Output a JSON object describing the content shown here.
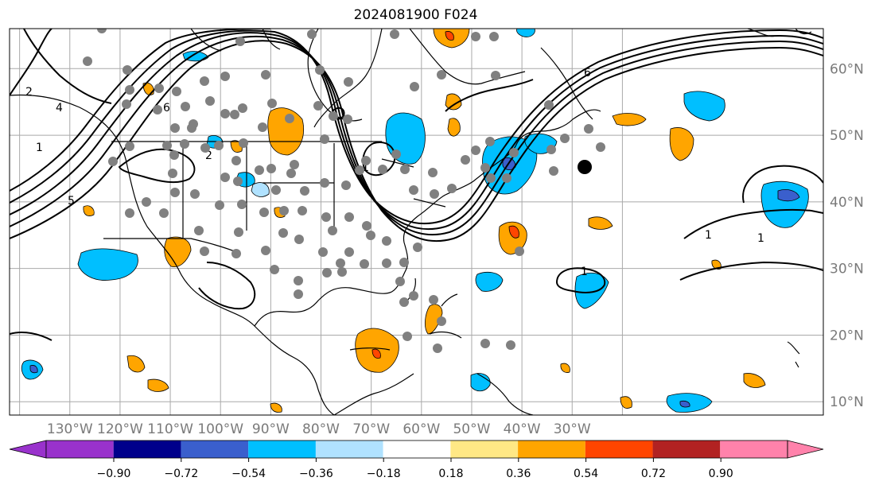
{
  "title": "2024081900 F024",
  "map": {
    "projection": "PlateCarree",
    "lon_range": [
      -142,
      20
    ],
    "lat_range": [
      8,
      66
    ],
    "grid": true,
    "longitude_labels": [
      "130°W",
      "120°W",
      "110°W",
      "100°W",
      "90°W",
      "80°W",
      "70°W",
      "60°W",
      "50°W",
      "40°W",
      "30°W"
    ],
    "latitude_labels": [
      "60°N",
      "50°N",
      "40°N",
      "30°N",
      "20°N",
      "10°N"
    ],
    "highlight_marker": {
      "lon": -55,
      "lat": 44.5,
      "color": "#000000"
    },
    "station_color": "#808080"
  },
  "colorbar": {
    "extend": "both",
    "colors": [
      "#9932cc",
      "#00008b",
      "#3a5fcd",
      "#00bfff",
      "#b0e2ff",
      "#ffffff",
      "#ffe885",
      "#ffa500",
      "#ff4500",
      "#b22222",
      "#ff82ab",
      "#ff82ab"
    ],
    "ticks": [
      "−0.90",
      "−0.72",
      "−0.54",
      "−0.36",
      "−0.18",
      "0.18",
      "0.36",
      "0.54",
      "0.72",
      "0.90"
    ]
  },
  "contour_labels": [
    "1",
    "2",
    "4",
    "5",
    "6",
    "1",
    "2",
    "6",
    "1",
    "1",
    "1"
  ],
  "colors": {
    "blue": "#00bfff",
    "light_blue": "#b0e2ff",
    "orange": "#ffa500",
    "red": "#ff4500",
    "navy": "#3a5fcd",
    "gray": "#808080"
  }
}
